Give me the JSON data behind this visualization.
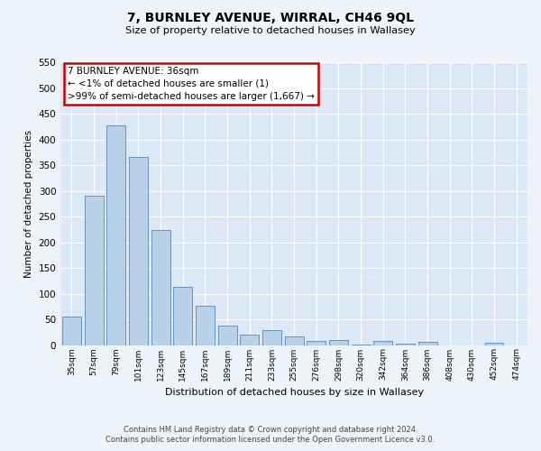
{
  "title": "7, BURNLEY AVENUE, WIRRAL, CH46 9QL",
  "subtitle": "Size of property relative to detached houses in Wallasey",
  "xlabel": "Distribution of detached houses by size in Wallasey",
  "ylabel": "Number of detached properties",
  "bar_labels": [
    "35sqm",
    "57sqm",
    "79sqm",
    "101sqm",
    "123sqm",
    "145sqm",
    "167sqm",
    "189sqm",
    "211sqm",
    "233sqm",
    "255sqm",
    "276sqm",
    "298sqm",
    "320sqm",
    "342sqm",
    "364sqm",
    "386sqm",
    "408sqm",
    "430sqm",
    "452sqm",
    "474sqm"
  ],
  "bar_values": [
    55,
    290,
    428,
    365,
    224,
    113,
    76,
    38,
    20,
    29,
    17,
    8,
    10,
    1,
    8,
    3,
    6,
    0,
    0,
    5,
    0
  ],
  "bar_color": "#b8d0e8",
  "bar_edge_color": "#5588bb",
  "ylim": [
    0,
    550
  ],
  "yticks": [
    0,
    50,
    100,
    150,
    200,
    250,
    300,
    350,
    400,
    450,
    500,
    550
  ],
  "annotation_box_title": "7 BURNLEY AVENUE: 36sqm",
  "annotation_line1": "← <1% of detached houses are smaller (1)",
  "annotation_line2": ">99% of semi-detached houses are larger (1,667) →",
  "annotation_box_edgecolor": "#cc0000",
  "bg_color": "#dce8f5",
  "grid_color": "#ffffff",
  "footer_line1": "Contains HM Land Registry data © Crown copyright and database right 2024.",
  "footer_line2": "Contains public sector information licensed under the Open Government Licence v3.0."
}
